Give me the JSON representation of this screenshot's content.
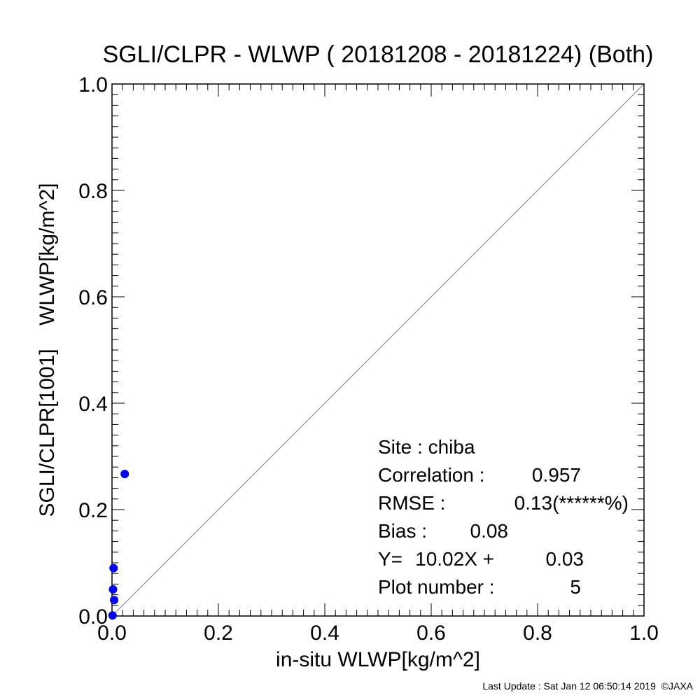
{
  "chart_data": {
    "type": "scatter",
    "title": "SGLI/CLPR - WLWP ( 20181208 - 20181224) (Both)",
    "xlabel": "in-situ WLWP[kg/m^2]",
    "ylabel": "SGLI/CLPR[1001]    WLWP[kg/m^2]",
    "xlim": [
      0.0,
      1.0
    ],
    "ylim": [
      0.0,
      1.0
    ],
    "xticks": [
      "0.0",
      "0.2",
      "0.4",
      "0.6",
      "0.8",
      "1.0"
    ],
    "yticks": [
      "0.0",
      "0.2",
      "0.4",
      "0.6",
      "0.8",
      "1.0"
    ],
    "grid": false,
    "reference_line": "y = x",
    "marker_color": "#0000ff",
    "series": [
      {
        "points": [
          {
            "x": 0.024,
            "y": 0.267
          },
          {
            "x": 0.003,
            "y": 0.09
          },
          {
            "x": 0.002,
            "y": 0.05
          },
          {
            "x": 0.004,
            "y": 0.03
          },
          {
            "x": 0.001,
            "y": 0.001
          }
        ]
      }
    ],
    "annotations": {
      "site": "Site : chiba",
      "correlation_label": "Correlation :",
      "correlation": "0.957",
      "rmse_label": "RMSE :",
      "rmse": "0.13(******%)",
      "bias_label": "Bias :",
      "bias": "0.08",
      "regression_prefix": "Y=",
      "regression_slope": "10.02X +",
      "regression_intercept": "0.03",
      "plot_number_label": "Plot number :",
      "plot_number": "5"
    }
  },
  "footer": "Last Update : Sat Jan 12 06:50:14 2019  ©JAXA"
}
